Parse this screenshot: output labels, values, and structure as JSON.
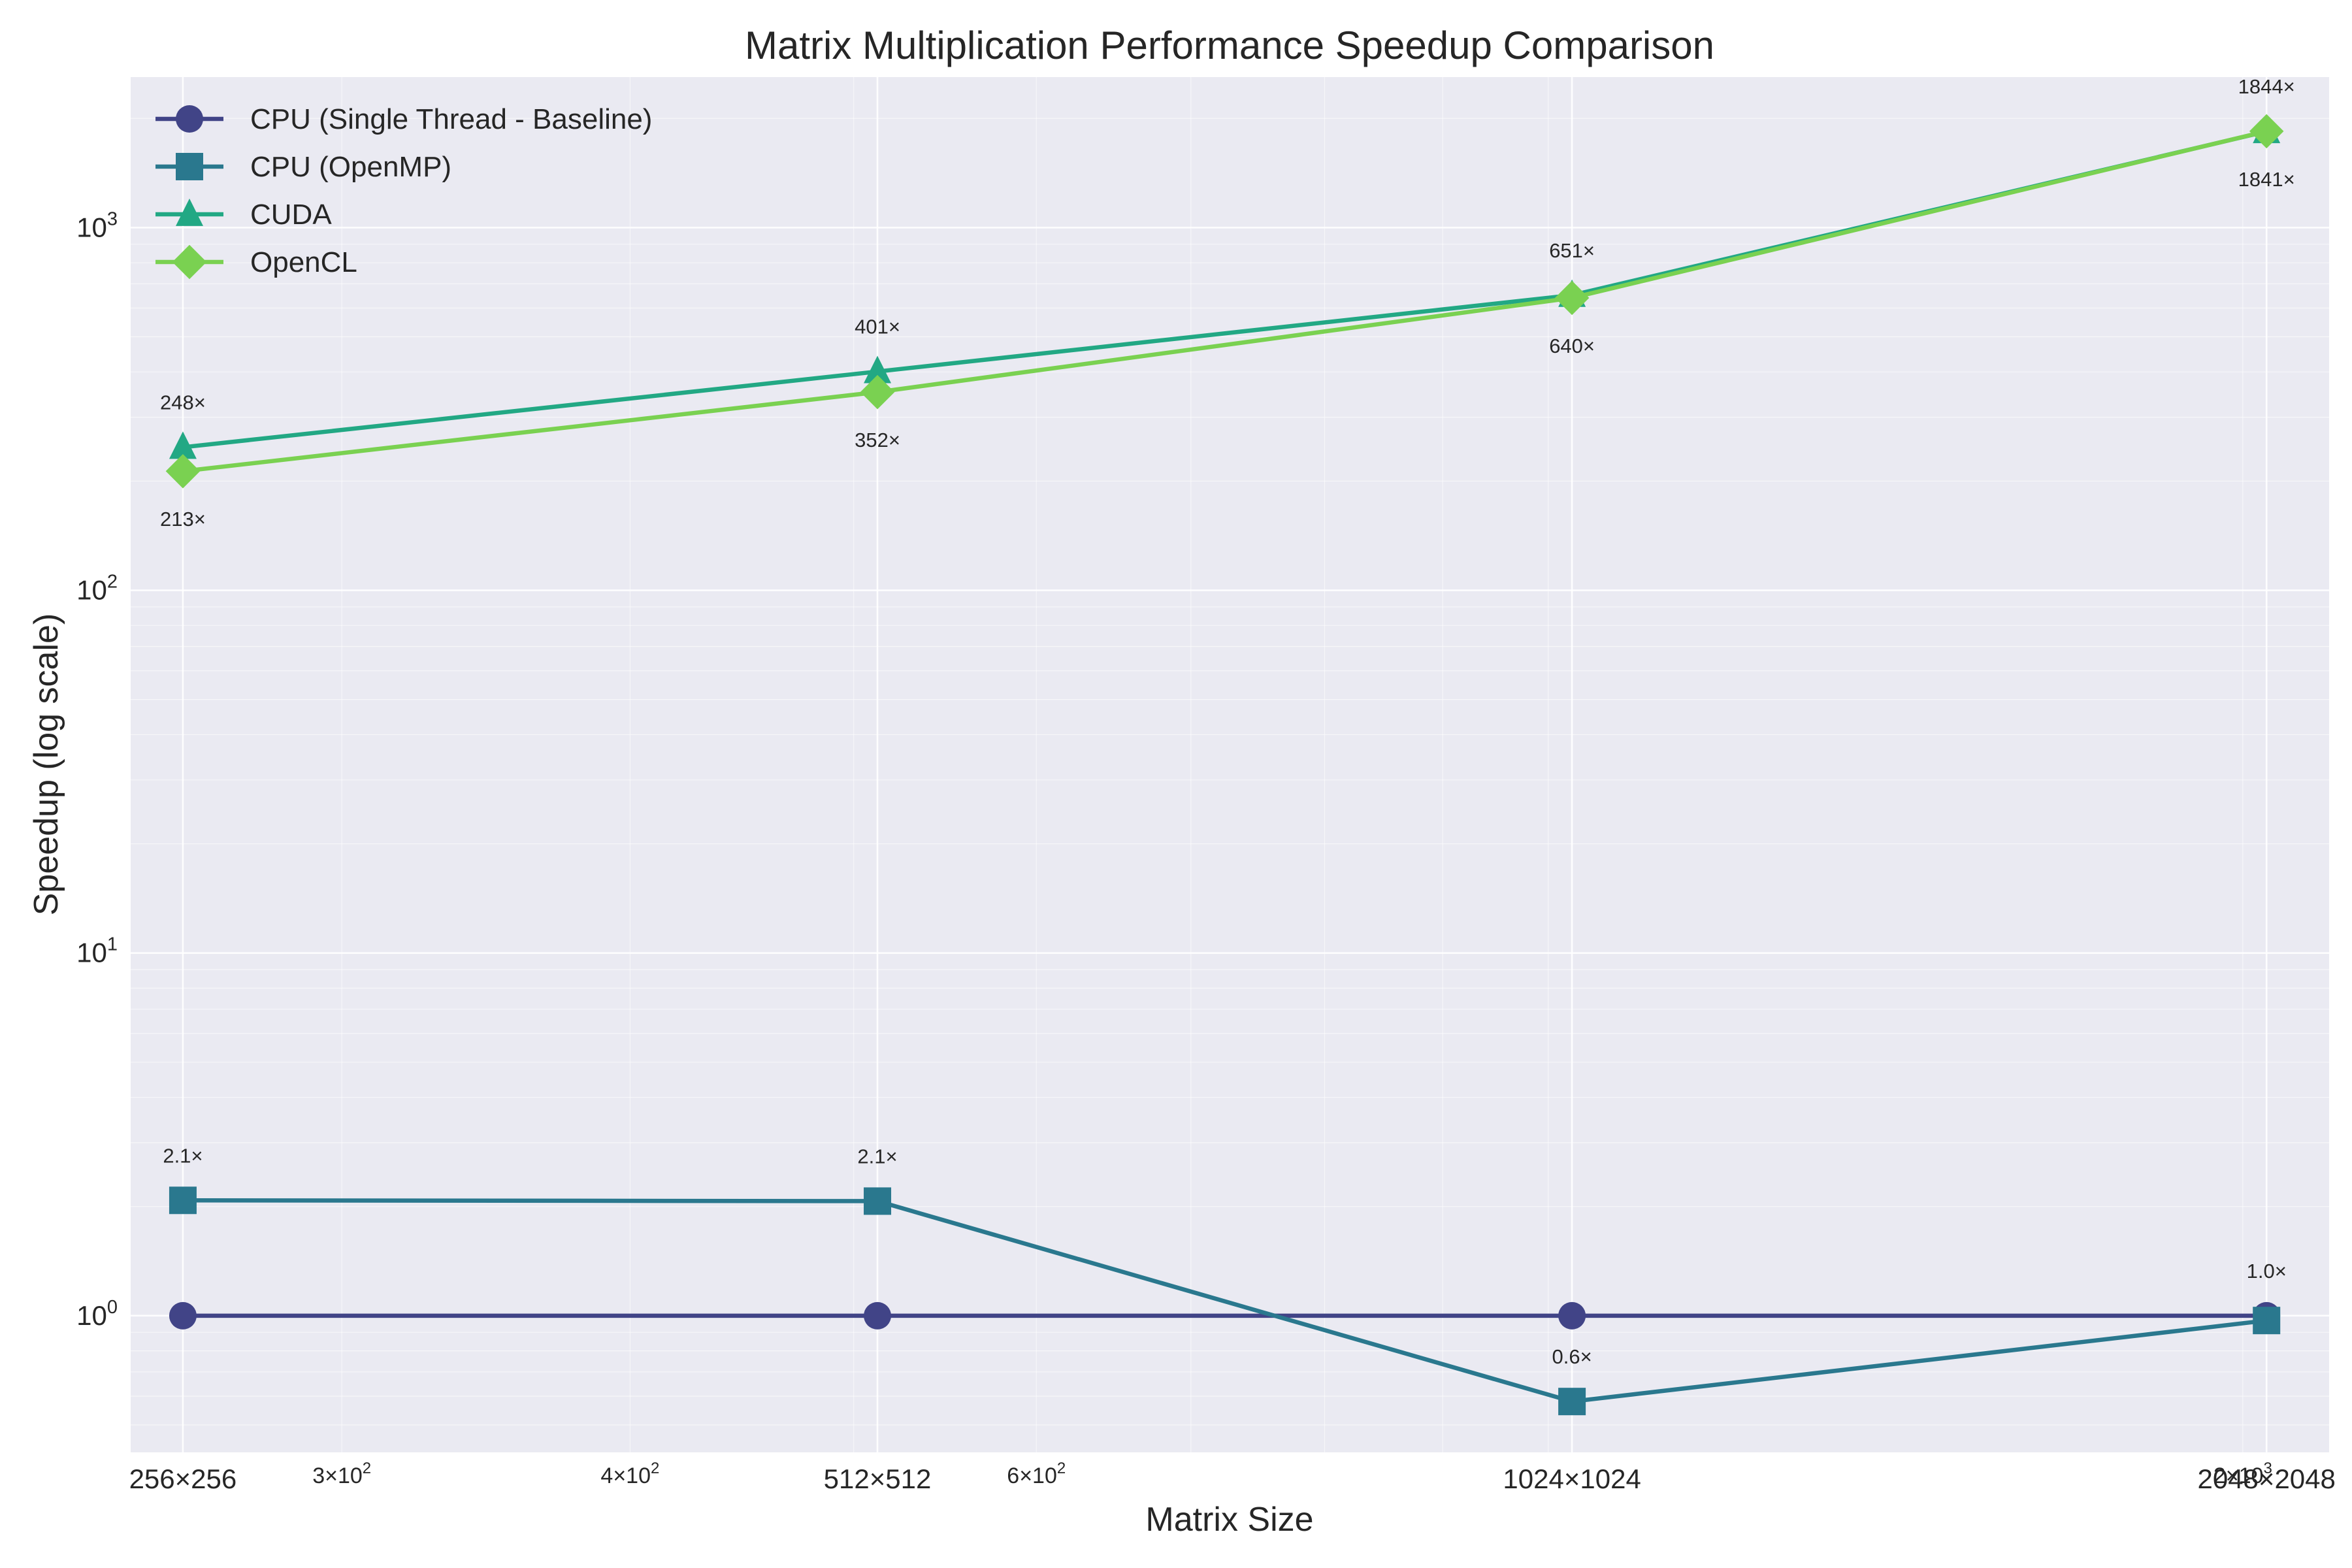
{
  "chart_data": {
    "type": "line",
    "title": "Matrix Multiplication Performance Speedup Comparison",
    "xlabel": "Matrix Size",
    "ylabel": "Speedup (log scale)",
    "x_scale": "log",
    "y_scale": "log",
    "x": [
      256,
      512,
      1024,
      2048
    ],
    "categories": [
      "256×256",
      "512×512",
      "1024×1024",
      "2048×2048"
    ],
    "xlim": [
      243,
      2180
    ],
    "ylim": [
      0.42,
      2600
    ],
    "x_minor_ticks": [
      {
        "value": 300,
        "mantissa": "3",
        "base": "10",
        "exp": "2"
      },
      {
        "value": 400,
        "mantissa": "4",
        "base": "10",
        "exp": "2"
      },
      {
        "value": 600,
        "mantissa": "6",
        "base": "10",
        "exp": "2"
      },
      {
        "value": 2000,
        "mantissa": "2",
        "base": "10",
        "exp": "3"
      }
    ],
    "y_ticks": [
      {
        "value": 1,
        "base": "10",
        "exp": "0"
      },
      {
        "value": 10,
        "base": "10",
        "exp": "1"
      },
      {
        "value": 100,
        "base": "10",
        "exp": "2"
      },
      {
        "value": 1000,
        "base": "10",
        "exp": "3"
      }
    ],
    "grid": true,
    "legend_position": "top-left",
    "series": [
      {
        "name": "CPU (Single Thread - Baseline)",
        "values": [
          1.0,
          1.0,
          1.0,
          1.0
        ],
        "color": "#414487",
        "marker": "circle",
        "labels": [
          "",
          "",
          "",
          "1.0×"
        ],
        "label_pos": [
          "",
          "",
          "",
          "above"
        ]
      },
      {
        "name": "CPU (OpenMP)",
        "values": [
          2.08,
          2.07,
          0.58,
          0.97
        ],
        "color": "#2a788e",
        "marker": "square",
        "labels": [
          "2.1×",
          "2.1×",
          "0.6×",
          ""
        ],
        "label_pos": [
          "above",
          "above",
          "above",
          ""
        ]
      },
      {
        "name": "CUDA",
        "values": [
          248,
          401,
          651,
          1841
        ],
        "color": "#22a884",
        "marker": "triangle",
        "labels": [
          "248×",
          "401×",
          "651×",
          "1841×"
        ],
        "label_pos": [
          "above",
          "above",
          "above",
          "below"
        ]
      },
      {
        "name": "OpenCL",
        "values": [
          213,
          352,
          640,
          1844
        ],
        "color": "#7ad151",
        "marker": "diamond",
        "labels": [
          "213×",
          "352×",
          "640×",
          "1844×"
        ],
        "label_pos": [
          "below",
          "below",
          "below",
          "above"
        ]
      }
    ]
  }
}
